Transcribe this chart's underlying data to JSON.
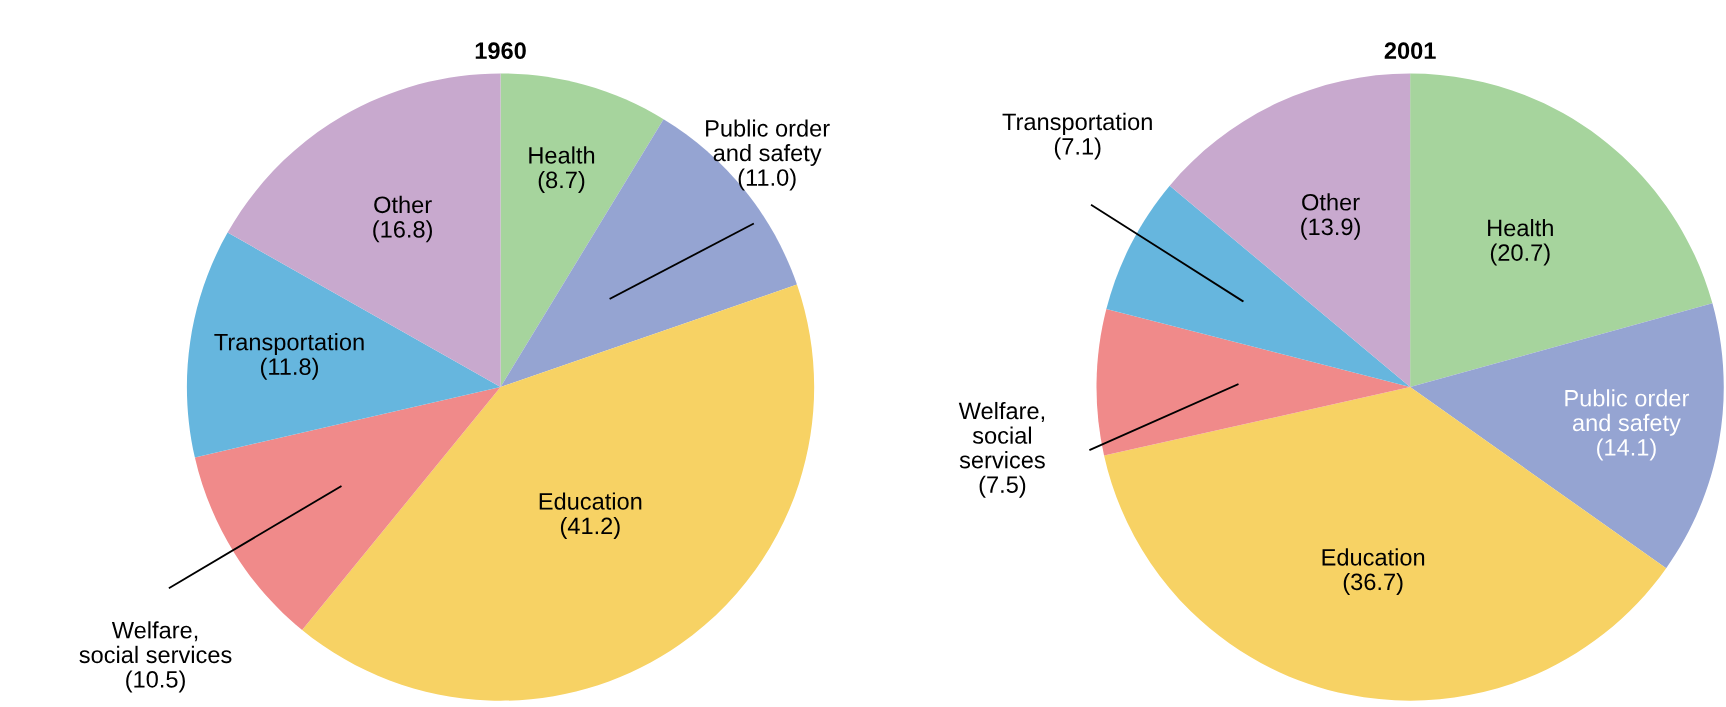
{
  "chart_data": [
    {
      "type": "pie",
      "title": "1960",
      "categories": [
        "Health",
        "Public order\nand safety",
        "Education",
        "Welfare,\nsocial services",
        "Transportation",
        "Other"
      ],
      "values": [
        8.7,
        11.0,
        41.2,
        10.5,
        11.8,
        16.8
      ],
      "value_labels": [
        "(8.7)",
        "(11.0)",
        "(41.2)",
        "(10.5)",
        "(11.8)",
        "(16.8)"
      ],
      "colors": [
        "#a6d49d",
        "#95a4d2",
        "#f7d264",
        "#f08a8a",
        "#66b6de",
        "#c8a9ce"
      ],
      "legend": false
    },
    {
      "type": "pie",
      "title": "2001",
      "categories": [
        "Health",
        "Public order\nand safety",
        "Education",
        "Welfare,\nsocial\nservices",
        "Transportation",
        "Other"
      ],
      "values": [
        20.7,
        14.1,
        36.7,
        7.5,
        7.1,
        13.9
      ],
      "value_labels": [
        "(20.7)",
        "(14.1)",
        "(36.7)",
        "(7.5)",
        "(7.1)",
        "(13.9)"
      ],
      "colors": [
        "#a6d49d",
        "#95a4d2",
        "#f7d264",
        "#f08a8a",
        "#66b6de",
        "#c8a9ce"
      ],
      "legend": false
    }
  ]
}
